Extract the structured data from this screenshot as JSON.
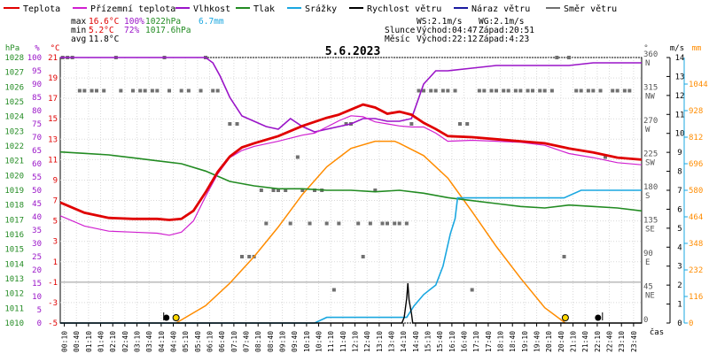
{
  "chart_data": {
    "type": "line",
    "title": "5.6.2023",
    "legend": [
      {
        "label": "Teplota",
        "color": "#e00000"
      },
      {
        "label": "Přízemní teplota",
        "color": "#d020d0"
      },
      {
        "label": "Vlhkost",
        "color": "#9a14c8"
      },
      {
        "label": "Tlak",
        "color": "#228b22"
      },
      {
        "label": "Srážky",
        "color": "#1aa7e0"
      },
      {
        "label": "Rychlost větru",
        "color": "#000000"
      },
      {
        "label": "Náraz větru",
        "color": "#1a1aa0"
      },
      {
        "label": "Směr větru",
        "color": "#707070"
      }
    ],
    "stats": {
      "max": {
        "label": "max",
        "temp": "16.6°C",
        "hum": "100%",
        "pres": "1022hPa",
        "rain": "6.7mm"
      },
      "min": {
        "label": "min",
        "temp": "5.2°C",
        "hum": "72%",
        "pres": "1017.6hPa"
      },
      "avg": {
        "label": "avg",
        "temp": "11.8°C"
      }
    },
    "info": {
      "ws": "WS:2.1m/s",
      "wg": "WG:2.1m/s",
      "sun_label": "Slunce",
      "sun_rise": "Východ:04:47",
      "sun_set": "Západ:20:51",
      "moon_label": "Měsíc",
      "moon_rise": "Východ:22:12",
      "moon_set": "Západ:4:23"
    },
    "axes": {
      "hpa": {
        "unit": "hPa",
        "ticks": [
          1010,
          1011,
          1012,
          1013,
          1014,
          1015,
          1016,
          1017,
          1018,
          1019,
          1020,
          1021,
          1022,
          1023,
          1024,
          1025,
          1026,
          1027,
          1028
        ]
      },
      "pct": {
        "unit": "%",
        "ticks": [
          0,
          5,
          10,
          15,
          20,
          25,
          30,
          35,
          40,
          45,
          50,
          55,
          60,
          65,
          70,
          75,
          80,
          85,
          90,
          95,
          100
        ]
      },
      "temp": {
        "unit": "°C",
        "ticks": [
          -5,
          -3,
          -1,
          1,
          3,
          5,
          7,
          9,
          11,
          13,
          15,
          17,
          19,
          21
        ]
      },
      "dir": {
        "unit": "°",
        "ticks": [
          {
            "deg": 0,
            "txt": "0"
          },
          {
            "deg": 45,
            "txt": "45",
            "sub": "NE"
          },
          {
            "deg": 90,
            "txt": "90",
            "sub": "E"
          },
          {
            "deg": 135,
            "txt": "135",
            "sub": "SE"
          },
          {
            "deg": 180,
            "txt": "180",
            "sub": "S"
          },
          {
            "deg": 225,
            "txt": "225",
            "sub": "SW"
          },
          {
            "deg": 270,
            "txt": "270",
            "sub": "W"
          },
          {
            "deg": 315,
            "txt": "315",
            "sub": "NW"
          },
          {
            "deg": 360,
            "txt": "360",
            "sub": "N"
          }
        ]
      },
      "ms": {
        "unit": "m/s",
        "ticks": [
          0,
          1,
          2,
          3,
          4,
          5,
          6,
          7,
          8,
          9,
          10,
          11,
          12,
          13,
          14
        ]
      },
      "mm": {
        "unit": "mm",
        "ticks": [
          0,
          116,
          232,
          348,
          464,
          580,
          696,
          812,
          928,
          1044
        ]
      },
      "time": {
        "label": "čas",
        "ticks": [
          "00:10",
          "00:40",
          "01:10",
          "01:40",
          "02:10",
          "02:40",
          "03:10",
          "03:40",
          "04:10",
          "04:40",
          "05:10",
          "05:40",
          "06:10",
          "06:40",
          "07:10",
          "07:40",
          "08:10",
          "08:40",
          "09:10",
          "09:40",
          "10:10",
          "10:40",
          "11:10",
          "11:40",
          "12:10",
          "12:40",
          "13:10",
          "13:40",
          "14:10",
          "14:40",
          "15:10",
          "15:40",
          "16:10",
          "16:40",
          "17:10",
          "17:40",
          "18:10",
          "18:40",
          "19:10",
          "19:40",
          "20:10",
          "20:40",
          "21:10",
          "21:40",
          "22:10",
          "22:40",
          "23:10",
          "23:40"
        ]
      }
    },
    "series": {
      "temperature": {
        "unit": "°C",
        "x": [
          0,
          1,
          2,
          3,
          4,
          4.5,
          5,
          5.5,
          6,
          6.5,
          7,
          7.5,
          8,
          9,
          10,
          10.5,
          11,
          11.5,
          12,
          12.5,
          13,
          13.5,
          14,
          14.5,
          15,
          15.5,
          16,
          17,
          18,
          19,
          20,
          21,
          22,
          23,
          24
        ],
        "y": [
          6.8,
          5.8,
          5.3,
          5.2,
          5.2,
          5.1,
          5.2,
          6.0,
          7.8,
          9.8,
          11.3,
          12.2,
          12.6,
          13.3,
          14.3,
          14.7,
          15.1,
          15.4,
          15.9,
          16.4,
          16.1,
          15.5,
          15.7,
          15.4,
          14.6,
          14.0,
          13.3,
          13.2,
          13.0,
          12.8,
          12.6,
          12.1,
          11.7,
          11.2,
          11.0
        ]
      },
      "ground_temperature": {
        "unit": "°C",
        "x": [
          0,
          1,
          2,
          3,
          4,
          4.5,
          5,
          5.5,
          6,
          6.5,
          7,
          7.5,
          8,
          9,
          10,
          10.5,
          11,
          11.5,
          12,
          12.5,
          13,
          13.5,
          14,
          14.5,
          15,
          15.5,
          16,
          17,
          18,
          19,
          20,
          21,
          22,
          23,
          24
        ],
        "y": [
          5.5,
          4.5,
          4.0,
          3.9,
          3.8,
          3.6,
          3.9,
          5.0,
          7.4,
          9.6,
          11.2,
          11.9,
          12.3,
          12.8,
          13.4,
          13.6,
          14.2,
          14.8,
          15.3,
          15.2,
          14.7,
          14.5,
          14.3,
          14.2,
          14.2,
          13.6,
          12.8,
          12.9,
          12.8,
          12.7,
          12.4,
          11.6,
          11.2,
          10.7,
          10.5
        ]
      },
      "humidity": {
        "unit": "%",
        "x": [
          0,
          4,
          5,
          6,
          6.3,
          6.6,
          7,
          7.5,
          8,
          8.5,
          9,
          9.5,
          10,
          10.5,
          11,
          11.5,
          12,
          12.5,
          13,
          13.5,
          14,
          14.5,
          15,
          15.5,
          16,
          17,
          18,
          19,
          20,
          21,
          22,
          23,
          24
        ],
        "y": [
          100,
          100,
          100,
          100,
          98,
          93,
          85,
          78,
          76,
          74,
          73,
          77,
          74,
          72,
          73,
          74,
          75,
          77,
          77,
          76,
          76,
          77,
          90,
          95,
          95,
          96,
          97,
          97,
          97,
          97,
          98,
          98,
          98
        ]
      },
      "pressure": {
        "unit": "hPa",
        "x": [
          0,
          1,
          2,
          3,
          4,
          5,
          6,
          7,
          8,
          9,
          10,
          11,
          12,
          13,
          14,
          15,
          16,
          17,
          18,
          19,
          20,
          21,
          22,
          23,
          24
        ],
        "y": [
          1021.6,
          1021.5,
          1021.4,
          1021.2,
          1021.0,
          1020.8,
          1020.3,
          1019.6,
          1019.3,
          1019.1,
          1019.1,
          1019.0,
          1019.0,
          1018.9,
          1019.0,
          1018.8,
          1018.5,
          1018.3,
          1018.1,
          1017.9,
          1017.8,
          1018.0,
          1017.9,
          1017.8,
          1017.6
        ]
      },
      "sun_elevation": {
        "unit": "°C",
        "x": [
          4.78,
          6,
          7,
          8,
          9,
          10,
          11,
          12,
          13,
          13.8,
          14,
          15,
          16,
          17,
          18,
          19,
          20,
          20.85
        ],
        "y": [
          -5,
          -3.3,
          -1.1,
          1.5,
          4.4,
          7.6,
          10.3,
          12.1,
          12.8,
          12.8,
          12.6,
          11.4,
          9.2,
          5.9,
          2.5,
          -0.6,
          -3.5,
          -5
        ]
      },
      "rain": {
        "unit": "m/s",
        "x": [
          0,
          10.5,
          11,
          14.3,
          14.6,
          15.0,
          15.3,
          15.5,
          15.8,
          16.1,
          16.3,
          16.4,
          16.6,
          20.8,
          21.5,
          24
        ],
        "y": [
          0,
          0,
          0.3,
          0.3,
          0.9,
          1.5,
          1.8,
          2.0,
          3.0,
          4.7,
          5.5,
          6.6,
          6.6,
          6.6,
          7.0,
          7.0
        ]
      },
      "wind": {
        "unit": "m/s",
        "x": [
          0,
          14.1,
          14.2,
          14.3,
          14.35,
          14.4,
          14.5,
          14.55,
          24
        ],
        "y": [
          0,
          0,
          0.3,
          1.3,
          2.1,
          1.2,
          0.5,
          0,
          0
        ]
      },
      "wind_direction": {
        "unit": "°",
        "points": [
          [
            0.1,
            360
          ],
          [
            0.3,
            360
          ],
          [
            0.5,
            360
          ],
          [
            0.8,
            315
          ],
          [
            1.0,
            315
          ],
          [
            1.3,
            315
          ],
          [
            1.5,
            315
          ],
          [
            1.8,
            315
          ],
          [
            2.3,
            360
          ],
          [
            2.5,
            315
          ],
          [
            3.0,
            315
          ],
          [
            3.3,
            315
          ],
          [
            3.5,
            315
          ],
          [
            3.8,
            315
          ],
          [
            4.0,
            315
          ],
          [
            4.3,
            360
          ],
          [
            4.5,
            315
          ],
          [
            5.0,
            315
          ],
          [
            5.3,
            315
          ],
          [
            5.8,
            315
          ],
          [
            6.0,
            360
          ],
          [
            6.3,
            315
          ],
          [
            6.5,
            315
          ],
          [
            7.0,
            270
          ],
          [
            7.3,
            270
          ],
          [
            7.5,
            90
          ],
          [
            7.8,
            90
          ],
          [
            8.0,
            90
          ],
          [
            8.3,
            180
          ],
          [
            8.5,
            135
          ],
          [
            8.8,
            180
          ],
          [
            9.0,
            180
          ],
          [
            9.3,
            180
          ],
          [
            9.5,
            135
          ],
          [
            9.8,
            225
          ],
          [
            10.0,
            180
          ],
          [
            10.3,
            135
          ],
          [
            10.5,
            180
          ],
          [
            10.8,
            180
          ],
          [
            11.0,
            135
          ],
          [
            11.3,
            45
          ],
          [
            11.5,
            135
          ],
          [
            11.8,
            270
          ],
          [
            12.0,
            270
          ],
          [
            12.3,
            135
          ],
          [
            12.5,
            90
          ],
          [
            12.8,
            135
          ],
          [
            13.0,
            180
          ],
          [
            13.3,
            135
          ],
          [
            13.5,
            135
          ],
          [
            13.8,
            135
          ],
          [
            14.0,
            135
          ],
          [
            14.3,
            135
          ],
          [
            14.5,
            270
          ],
          [
            14.8,
            315
          ],
          [
            15.0,
            315
          ],
          [
            15.3,
            315
          ],
          [
            15.5,
            315
          ],
          [
            15.8,
            315
          ],
          [
            16.0,
            315
          ],
          [
            16.3,
            315
          ],
          [
            16.5,
            270
          ],
          [
            16.8,
            270
          ],
          [
            17.0,
            45
          ],
          [
            17.3,
            315
          ],
          [
            17.5,
            315
          ],
          [
            17.8,
            315
          ],
          [
            18.0,
            315
          ],
          [
            18.3,
            315
          ],
          [
            18.5,
            315
          ],
          [
            18.8,
            315
          ],
          [
            19.0,
            315
          ],
          [
            19.3,
            315
          ],
          [
            19.5,
            315
          ],
          [
            19.8,
            315
          ],
          [
            20.0,
            315
          ],
          [
            20.3,
            315
          ],
          [
            20.5,
            360
          ],
          [
            20.8,
            90
          ],
          [
            21.0,
            360
          ],
          [
            21.3,
            315
          ],
          [
            21.5,
            315
          ],
          [
            21.8,
            315
          ],
          [
            22.0,
            315
          ],
          [
            22.3,
            315
          ],
          [
            22.5,
            225
          ],
          [
            22.8,
            315
          ],
          [
            23.0,
            315
          ],
          [
            23.3,
            315
          ],
          [
            23.5,
            315
          ]
        ]
      }
    }
  }
}
